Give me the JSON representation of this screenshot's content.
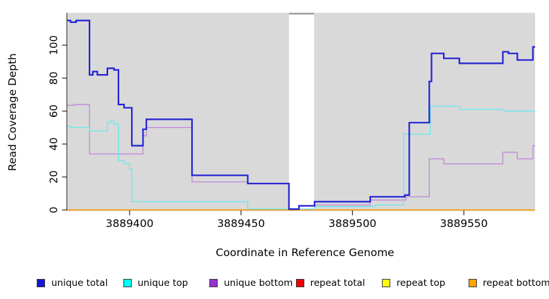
{
  "figure": {
    "bg": "#ffffff",
    "plot_bg": "#d9d9d9",
    "gap_cap_color": "#9b9b9b",
    "axis_color": "#2a2a2a"
  },
  "x_axis": {
    "title": "Coordinate in Reference Genome",
    "ticks": [
      3889400,
      3889450,
      3889500,
      3889550
    ]
  },
  "y_axis": {
    "title": "Read Coverage Depth",
    "ticks": [
      0,
      20,
      40,
      60,
      80,
      100
    ]
  },
  "legend": {
    "items": [
      {
        "label": "unique total",
        "color": "#1515d6"
      },
      {
        "label": "unique top",
        "color": "#00ffff"
      },
      {
        "label": "unique bottom",
        "color": "#9932cc"
      },
      {
        "label": "repeat total",
        "color": "#ee0000"
      },
      {
        "label": "repeat top",
        "color": "#ffff00"
      },
      {
        "label": "repeat bottom",
        "color": "#ffa500"
      }
    ]
  },
  "chart_data": {
    "type": "line",
    "subtype": "step-coverage-plot",
    "xlabel": "Coordinate in Reference Genome",
    "ylabel": "Read Coverage Depth",
    "x_range": [
      3889372,
      3889582
    ],
    "y_range": [
      0,
      120
    ],
    "grid": false,
    "legend_position": "bottom",
    "no_data_gap": [
      3889471.5,
      3889482.8
    ],
    "series": [
      {
        "name": "repeat total",
        "color": "#cc1111",
        "width": 1.2,
        "points": [
          [
            3889372,
            0
          ]
        ]
      },
      {
        "name": "repeat top",
        "color": "#f2f215",
        "width": 1.2,
        "points": [
          [
            3889372,
            0
          ]
        ]
      },
      {
        "name": "repeat bottom",
        "color": "#ff9d00",
        "width": 1.7,
        "points": [
          [
            3889372,
            0
          ]
        ]
      },
      {
        "name": "unique bottom",
        "color": "#c38ad9",
        "width": 1.4,
        "points": [
          [
            3889372,
            63.5
          ],
          [
            3889375,
            64
          ],
          [
            3889382,
            34
          ],
          [
            3889406,
            45
          ],
          [
            3889407.5,
            50
          ],
          [
            3889428,
            17
          ],
          [
            3889453,
            16
          ],
          [
            3889471.5,
            0.5
          ],
          [
            3889483,
            3
          ],
          [
            3889508,
            6
          ],
          [
            3889524,
            8
          ],
          [
            3889534.5,
            31
          ],
          [
            3889541,
            28
          ],
          [
            3889567.5,
            35
          ],
          [
            3889574,
            31
          ],
          [
            3889581,
            39
          ]
        ]
      },
      {
        "name": "unique top",
        "color": "#70e6ec",
        "width": 1.4,
        "points": [
          [
            3889372,
            51
          ],
          [
            3889373.5,
            50
          ],
          [
            3889382,
            48
          ],
          [
            3889390,
            53
          ],
          [
            3889391.5,
            54
          ],
          [
            3889393,
            52
          ],
          [
            3889395,
            30
          ],
          [
            3889397.5,
            28
          ],
          [
            3889400,
            25
          ],
          [
            3889401,
            5
          ],
          [
            3889453,
            0.5
          ],
          [
            3889483,
            2
          ],
          [
            3889510,
            3
          ],
          [
            3889523,
            46
          ],
          [
            3889535,
            63
          ],
          [
            3889548,
            61
          ],
          [
            3889568,
            60
          ]
        ]
      },
      {
        "name": "unique total",
        "color": "#2121d3",
        "width": 2.2,
        "points": [
          [
            3889372,
            115
          ],
          [
            3889373.5,
            114
          ],
          [
            3889376,
            115
          ],
          [
            3889382,
            82
          ],
          [
            3889383.5,
            84
          ],
          [
            3889385.5,
            82
          ],
          [
            3889390,
            86
          ],
          [
            3889393,
            85
          ],
          [
            3889395,
            64
          ],
          [
            3889397.5,
            62
          ],
          [
            3889401,
            39
          ],
          [
            3889406,
            49
          ],
          [
            3889407.5,
            55
          ],
          [
            3889428,
            21
          ],
          [
            3889453,
            16
          ],
          [
            3889471.5,
            0.5
          ],
          [
            3889476,
            2.5
          ],
          [
            3889483,
            5
          ],
          [
            3889508,
            8
          ],
          [
            3889523.5,
            9
          ],
          [
            3889525.5,
            53
          ],
          [
            3889534.5,
            78
          ],
          [
            3889535.5,
            95
          ],
          [
            3889541,
            92
          ],
          [
            3889548,
            89
          ],
          [
            3889567.5,
            96
          ],
          [
            3889570,
            95
          ],
          [
            3889574,
            91
          ],
          [
            3889581,
            99
          ]
        ]
      }
    ]
  }
}
